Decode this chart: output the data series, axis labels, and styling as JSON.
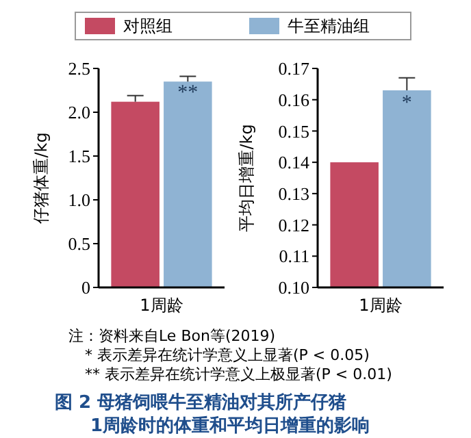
{
  "chart_data": [
    {
      "type": "bar",
      "title": "图 2 母猪饲喂牛至精油对其所产仔猪1周龄时的体重和平均日增重的影响",
      "ylabel": "仔猪体重/kg",
      "categories": [
        "1周龄"
      ],
      "series": [
        {
          "name": "对照组",
          "color": "#c44a62",
          "values": [
            2.12
          ],
          "errors": [
            0.07
          ]
        },
        {
          "name": "牛至精油组",
          "color": "#8fb3d3",
          "values": [
            2.35
          ],
          "errors": [
            0.06
          ]
        }
      ],
      "ylim": [
        0,
        2.5
      ],
      "yticks": [
        0,
        0.5,
        {
          "value": 1,
          "label": "1.0"
        },
        1.5,
        {
          "value": 2,
          "label": "2.0"
        },
        2.5
      ],
      "legend": "top",
      "grid": false,
      "annotations": [
        {
          "text": "**",
          "x": "1周龄",
          "y": 2.3
        },
        "注：资料来自Le Bon等(2019)",
        "* 表示差异在统计学意义上显著(P < 0.05)",
        "** 表示差异在统计学意义上极显著(P < 0.01)"
      ]
    },
    {
      "type": "bar",
      "ylabel": "平均日增重/kg",
      "categories": [
        "1周龄"
      ],
      "series": [
        {
          "color": "#c44a62",
          "values": [
            0.14
          ],
          "errors": [
            null
          ]
        },
        {
          "color": "#8fb3d3",
          "values": [
            0.163
          ],
          "errors": [
            0.004
          ]
        }
      ],
      "ylim": [
        0.1,
        0.17
      ],
      "yticks": [
        {
          "value": 0.1,
          "label": "0.10"
        },
        0.11,
        0.12,
        0.13,
        0.14,
        0.15,
        0.16,
        0.17
      ],
      "grid": false,
      "annotations": [
        {
          "text": "*",
          "x": "1周龄",
          "y": 0.161
        }
      ]
    }
  ]
}
